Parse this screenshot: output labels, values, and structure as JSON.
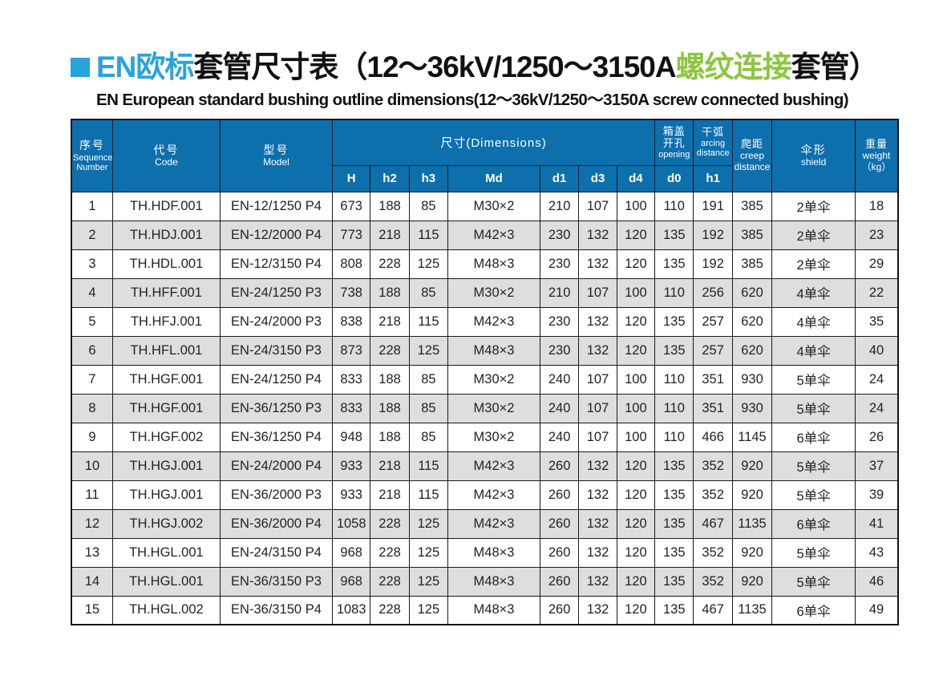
{
  "colors": {
    "accent_cyan": "#29a3dc",
    "accent_green": "#8dc63f",
    "header_bg": "#0e6fad",
    "row_alt_bg": "#dedede"
  },
  "title": {
    "part_cyan": "EN欧标",
    "part_black1": "套管尺寸表（12～36kV/1250～3150A",
    "part_green": "螺纹连接",
    "part_black2": "套管）",
    "subtitle": "EN European standard bushing outline dimensions(12～36kV/1250～3150A screw connected bushing)"
  },
  "table": {
    "headers": {
      "seq": {
        "cn": "序号",
        "en1": "Sequence",
        "en2": "Number"
      },
      "code": {
        "cn": "代号",
        "en": "Code"
      },
      "model": {
        "cn": "型号",
        "en": "Model"
      },
      "dims": {
        "label": "尺寸(Dimensions)"
      },
      "opening": {
        "cn1": "箱盖",
        "cn2": "开孔",
        "en": "opening"
      },
      "arcing": {
        "cn": "干弧",
        "en1": "arcing",
        "en2": "distance"
      },
      "creep": {
        "cn": "爬距",
        "en1": "creep",
        "en2": "distance"
      },
      "shield": {
        "cn": "伞形",
        "en": "shield"
      },
      "weight": {
        "cn": "重量",
        "en": "weight",
        "unit": "（kg）"
      }
    },
    "sub_headers": [
      "H",
      "h2",
      "h3",
      "Md",
      "d1",
      "d3",
      "d4",
      "d0",
      "h1"
    ],
    "column_keys": [
      "seq",
      "code",
      "model",
      "H",
      "h2",
      "h3",
      "Md",
      "d1",
      "d3",
      "d4",
      "d0",
      "h1",
      "creep",
      "shield",
      "weight"
    ],
    "rows": [
      [
        1,
        "TH.HDF.001",
        "EN-12/1250 P4",
        673,
        188,
        85,
        "M30×2",
        210,
        107,
        100,
        110,
        191,
        385,
        "2单伞",
        18
      ],
      [
        2,
        "TH.HDJ.001",
        "EN-12/2000 P4",
        773,
        218,
        115,
        "M42×3",
        230,
        132,
        120,
        135,
        192,
        385,
        "2单伞",
        23
      ],
      [
        3,
        "TH.HDL.001",
        "EN-12/3150 P4",
        808,
        228,
        125,
        "M48×3",
        230,
        132,
        120,
        135,
        192,
        385,
        "2单伞",
        29
      ],
      [
        4,
        "TH.HFF.001",
        "EN-24/1250 P3",
        738,
        188,
        85,
        "M30×2",
        210,
        107,
        100,
        110,
        256,
        620,
        "4单伞",
        22
      ],
      [
        5,
        "TH.HFJ.001",
        "EN-24/2000 P3",
        838,
        218,
        115,
        "M42×3",
        230,
        132,
        120,
        135,
        257,
        620,
        "4单伞",
        35
      ],
      [
        6,
        "TH.HFL.001",
        "EN-24/3150 P3",
        873,
        228,
        125,
        "M48×3",
        230,
        132,
        120,
        135,
        257,
        620,
        "4单伞",
        40
      ],
      [
        7,
        "TH.HGF.001",
        "EN-24/1250 P4",
        833,
        188,
        85,
        "M30×2",
        240,
        107,
        100,
        110,
        351,
        930,
        "5单伞",
        24
      ],
      [
        8,
        "TH.HGF.001",
        "EN-36/1250 P3",
        833,
        188,
        85,
        "M30×2",
        240,
        107,
        100,
        110,
        351,
        930,
        "5单伞",
        24
      ],
      [
        9,
        "TH.HGF.002",
        "EN-36/1250 P4",
        948,
        188,
        85,
        "M30×2",
        240,
        107,
        100,
        110,
        466,
        1145,
        "6单伞",
        26
      ],
      [
        10,
        "TH.HGJ.001",
        "EN-24/2000 P4",
        933,
        218,
        115,
        "M42×3",
        260,
        132,
        120,
        135,
        352,
        920,
        "5单伞",
        37
      ],
      [
        11,
        "TH.HGJ.001",
        "EN-36/2000 P3",
        933,
        218,
        115,
        "M42×3",
        260,
        132,
        120,
        135,
        352,
        920,
        "5单伞",
        39
      ],
      [
        12,
        "TH.HGJ.002",
        "EN-36/2000 P4",
        1058,
        228,
        125,
        "M42×3",
        260,
        132,
        120,
        135,
        467,
        1135,
        "6单伞",
        41
      ],
      [
        13,
        "TH.HGL.001",
        "EN-24/3150 P4",
        968,
        228,
        125,
        "M48×3",
        260,
        132,
        120,
        135,
        352,
        920,
        "5单伞",
        43
      ],
      [
        14,
        "TH.HGL.001",
        "EN-36/3150 P3",
        968,
        228,
        125,
        "M48×3",
        260,
        132,
        120,
        135,
        352,
        920,
        "5单伞",
        46
      ],
      [
        15,
        "TH.HGL.002",
        "EN-36/3150 P4",
        1083,
        228,
        125,
        "M48×3",
        260,
        132,
        120,
        135,
        467,
        1135,
        "6单伞",
        49
      ]
    ]
  }
}
